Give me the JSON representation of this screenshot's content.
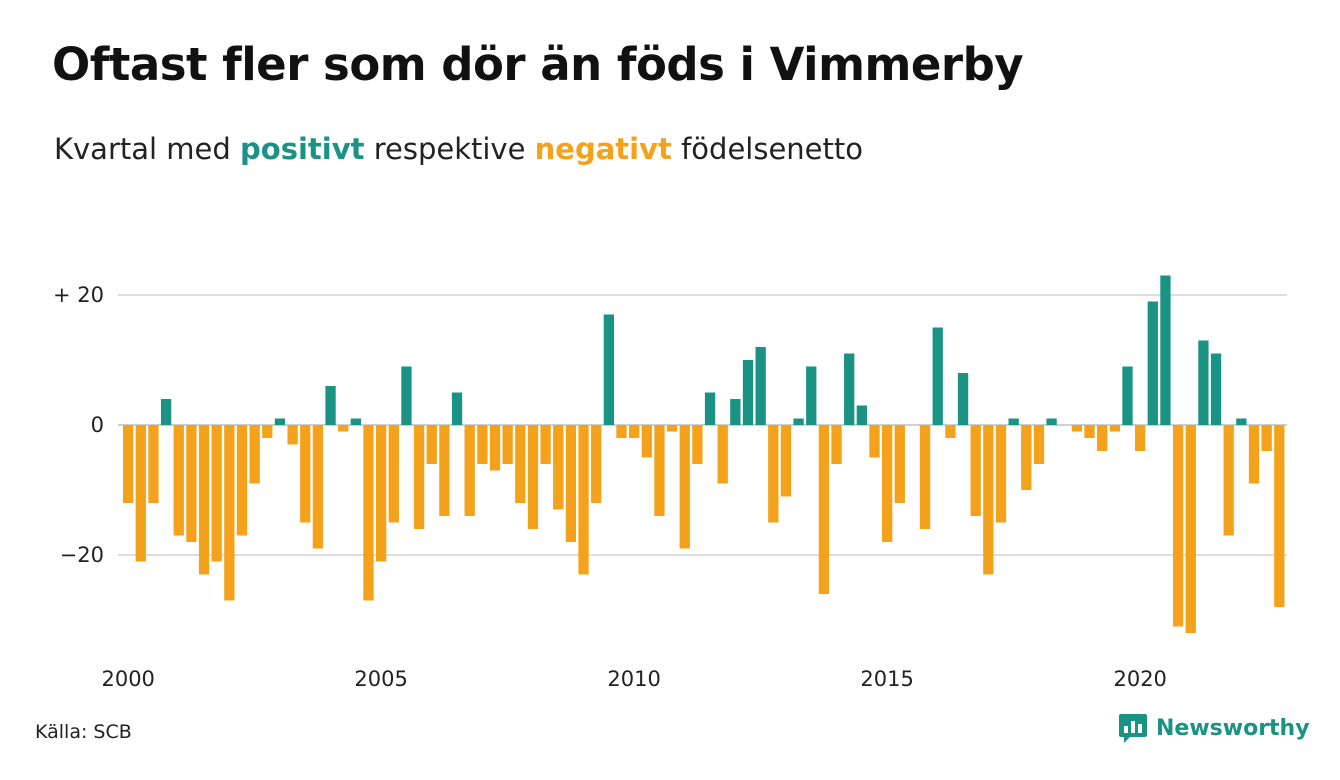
{
  "title": "Oftast fler som dör än föds i Vimmerby",
  "subtitle": {
    "prefix": "Kvartal med",
    "positive_word": "positivt",
    "middle": "respektive",
    "negative_word": "negativt",
    "suffix": "födelsenetto"
  },
  "colors": {
    "positive": "#1a9385",
    "negative": "#f4a21b",
    "grid": "#dddddd",
    "baseline": "#d0d0d0"
  },
  "source": "Källa: SCB",
  "brand": {
    "name": "Newsworthy",
    "icon": "newsworthy-logo-icon"
  },
  "chart_data": {
    "type": "bar",
    "title": "Oftast fler som dör än föds i Vimmerby",
    "subtitle": "Kvartal med positivt respektive negativt födelsenetto",
    "x_start": "2000 Q1",
    "x_tick_labels": [
      "2000",
      "2005",
      "2010",
      "2015",
      "2020"
    ],
    "y_tick_labels": [
      "+ 20",
      "0",
      "−20"
    ],
    "y_ticks": [
      20,
      0,
      -20
    ],
    "ylim": [
      -34,
      28
    ],
    "grid": true,
    "values": [
      -12,
      -21,
      -12,
      4,
      -17,
      -18,
      -23,
      -21,
      -27,
      -17,
      -9,
      -2,
      1,
      -3,
      -15,
      -19,
      6,
      -1,
      1,
      -27,
      -21,
      -15,
      9,
      -16,
      -6,
      -14,
      5,
      -14,
      -6,
      -7,
      -6,
      -12,
      -16,
      -6,
      -13,
      -18,
      -23,
      -12,
      17,
      -2,
      -2,
      -5,
      -14,
      -1,
      -19,
      -6,
      5,
      -9,
      4,
      10,
      12,
      -15,
      -11,
      1,
      9,
      -26,
      -6,
      11,
      3,
      -5,
      -18,
      -12,
      0,
      -16,
      15,
      -2,
      8,
      -14,
      -23,
      -15,
      1,
      -10,
      -6,
      1,
      0,
      -1,
      -2,
      -4,
      -1,
      9,
      -4,
      19,
      23,
      -31,
      -32,
      13,
      11,
      -17,
      1,
      -9,
      -4,
      -28
    ]
  }
}
